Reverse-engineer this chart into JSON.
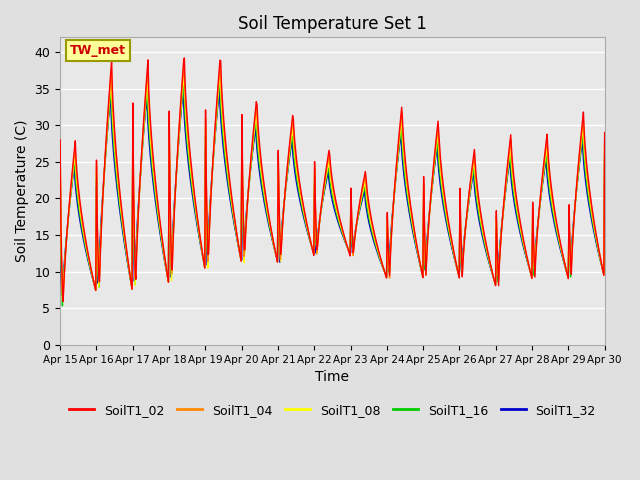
{
  "title": "Soil Temperature Set 1",
  "xlabel": "Time",
  "ylabel": "Soil Temperature (C)",
  "ylim": [
    0,
    42
  ],
  "yticks": [
    0,
    5,
    10,
    15,
    20,
    25,
    30,
    35,
    40
  ],
  "x_tick_labels": [
    "Apr 15",
    "Apr 16",
    "Apr 17",
    "Apr 18",
    "Apr 19",
    "Apr 20",
    "Apr 21",
    "Apr 22",
    "Apr 23",
    "Apr 24",
    "Apr 25",
    "Apr 26",
    "Apr 27",
    "Apr 28",
    "Apr 29",
    "Apr 30"
  ],
  "series_colors": {
    "SoilT1_02": "#ff0000",
    "SoilT1_04": "#ff8800",
    "SoilT1_08": "#ffff00",
    "SoilT1_16": "#00cc00",
    "SoilT1_32": "#0000cc"
  },
  "series_order": [
    "SoilT1_32",
    "SoilT1_16",
    "SoilT1_08",
    "SoilT1_04",
    "SoilT1_02"
  ],
  "legend_order": [
    "SoilT1_02",
    "SoilT1_04",
    "SoilT1_08",
    "SoilT1_16",
    "SoilT1_32"
  ],
  "annotation_text": "TW_met",
  "annotation_color": "#cc0000",
  "annotation_bg": "#ffff99",
  "annotation_border": "#999900",
  "plot_bg_color": "#e8e8e8",
  "fig_bg_color": "#e0e0e0",
  "grid_color": "#ffffff",
  "linewidth": 1.0,
  "n_points_per_day": 48,
  "n_days": 15,
  "day_peaks": [
    28,
    39,
    39,
    40,
    40,
    34,
    32,
    27,
    24,
    33,
    31,
    27,
    29,
    29,
    32
  ],
  "day_troughs": [
    5,
    7,
    7,
    8,
    10,
    11,
    11,
    12,
    12,
    9,
    9,
    9,
    8,
    9,
    9
  ],
  "peak_time": 0.42,
  "trough_time": 0.08,
  "depth_dampening": [
    0.0,
    0.03,
    0.06,
    0.09,
    0.12
  ],
  "depth_lag": [
    0.0,
    0.005,
    0.01,
    0.018,
    0.03
  ]
}
